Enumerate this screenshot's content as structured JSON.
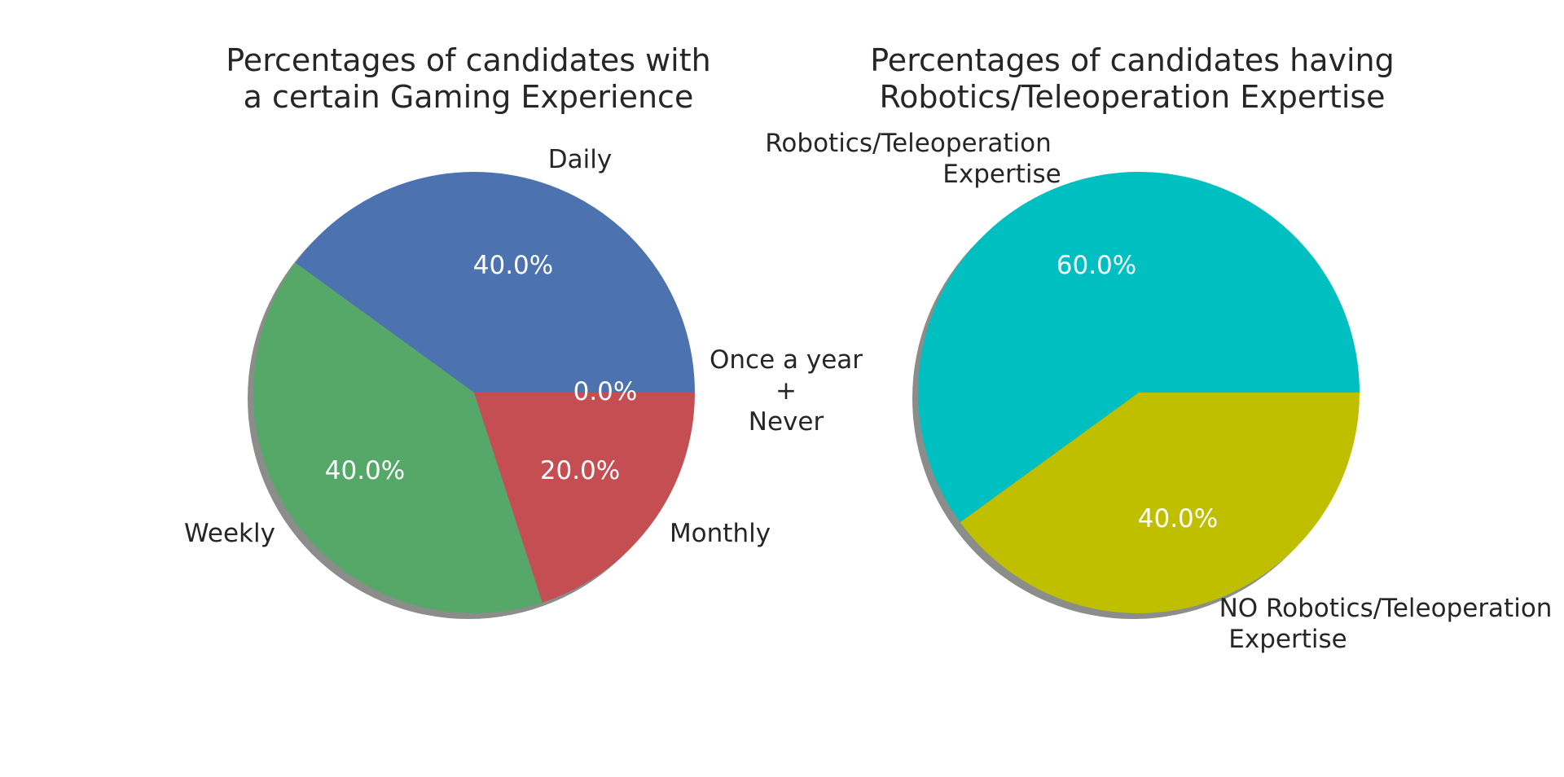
{
  "chart_data": [
    {
      "type": "pie",
      "title_lines": [
        "Percentages of candidates  with",
        "a certain Gaming Experience"
      ],
      "start_angle_deg": 0,
      "direction": "counterclockwise",
      "shadow": true,
      "slices": [
        {
          "label_lines": [
            "Daily"
          ],
          "value": 40.0,
          "pct_label": "40.0%",
          "color": "#4C72B0"
        },
        {
          "label_lines": [
            "Weekly"
          ],
          "value": 40.0,
          "pct_label": "40.0%",
          "color": "#55A868"
        },
        {
          "label_lines": [
            "Monthly"
          ],
          "value": 20.0,
          "pct_label": "20.0%",
          "color": "#C44E52"
        },
        {
          "label_lines": [
            "Once a year",
            "+",
            "Never"
          ],
          "value": 0.0,
          "pct_label": "0.0%",
          "color": "#8172B2"
        }
      ]
    },
    {
      "type": "pie",
      "title_lines": [
        "Percentages of candidates having",
        "Robotics/Teleoperation Expertise"
      ],
      "start_angle_deg": 0,
      "direction": "counterclockwise",
      "shadow": true,
      "slices": [
        {
          "label_lines": [
            "Robotics/Teleoperation",
            "Expertise"
          ],
          "value": 60.0,
          "pct_label": "60.0%",
          "color": "#00BFC0"
        },
        {
          "label_lines": [
            "NO Robotics/Teleoperation",
            "Expertise"
          ],
          "value": 40.0,
          "pct_label": "40.0%",
          "color": "#BFBF00"
        }
      ]
    }
  ]
}
